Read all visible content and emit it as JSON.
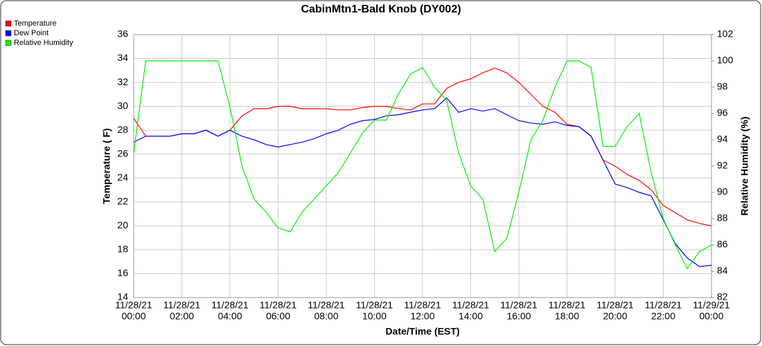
{
  "chart_data": {
    "type": "line",
    "title": "CabinMtn1-Bald Knob (DY002)",
    "x_label": "Date/Time (EST)",
    "y_label": "Temperature ( F)",
    "y2_label": "Relative Humidity (%)",
    "x": [
      0,
      0.5,
      1,
      1.5,
      2,
      2.5,
      3,
      3.5,
      4,
      4.5,
      5,
      5.5,
      6,
      6.5,
      7,
      7.5,
      8,
      8.5,
      9,
      9.5,
      10,
      10.5,
      11,
      11.5,
      12,
      12.5,
      13,
      13.5,
      14,
      14.5,
      15,
      15.5,
      16,
      16.5,
      17,
      17.5,
      18,
      18.5,
      19,
      19.5,
      20,
      20.5,
      21,
      21.5,
      22,
      22.5,
      23,
      23.5,
      24
    ],
    "series": [
      {
        "name": "Temperature",
        "color": "#ff0000",
        "values": [
          29,
          27.5,
          27.5,
          27.5,
          27.7,
          27.7,
          28,
          27.5,
          28,
          29.2,
          29.8,
          29.8,
          30,
          30,
          29.8,
          29.8,
          29.8,
          29.7,
          29.7,
          29.9,
          30,
          30,
          29.8,
          29.7,
          30.2,
          30.2,
          31.5,
          32,
          32.3,
          32.8,
          33.2,
          32.8,
          32,
          31,
          30,
          29.5,
          28.5,
          28.3,
          27.5,
          25.5,
          25,
          24.3,
          23.8,
          23,
          21.7,
          21.1,
          20.5,
          20.2,
          20
        ]
      },
      {
        "name": "Dew Point",
        "color": "#0000ff",
        "values": [
          27,
          27.5,
          27.5,
          27.5,
          27.7,
          27.7,
          28,
          27.5,
          28,
          27.5,
          27.2,
          26.8,
          26.6,
          26.8,
          27,
          27.3,
          27.7,
          28,
          28.5,
          28.8,
          28.9,
          29.2,
          29.3,
          29.5,
          29.7,
          29.8,
          30.7,
          29.5,
          29.8,
          29.6,
          29.8,
          29.3,
          28.8,
          28.6,
          28.5,
          28.7,
          28.4,
          28.3,
          27.5,
          25.5,
          23.5,
          23.2,
          22.8,
          22.5,
          20.5,
          18.5,
          17.3,
          16.6,
          16.7
        ]
      },
      {
        "name": "Relative Humidity",
        "color": "#00ee00",
        "axis": "y2",
        "values": [
          93,
          100,
          100,
          100,
          100,
          100,
          100,
          100,
          96.5,
          92,
          89.5,
          88.5,
          87.3,
          87,
          88.5,
          89.5,
          90.5,
          91.5,
          93,
          94.5,
          95.5,
          95.5,
          97.5,
          99,
          99.5,
          98,
          97,
          93,
          90.5,
          89.5,
          85.5,
          86.5,
          90,
          94,
          95.5,
          98,
          100,
          100,
          99.5,
          93.5,
          93.5,
          95,
          96,
          91.5,
          88,
          86,
          84.2,
          85.5,
          86
        ]
      }
    ],
    "xlim": [
      0,
      24
    ],
    "xticks": [
      {
        "value": 0,
        "label": [
          "11/28/21",
          "00:00"
        ]
      },
      {
        "value": 2,
        "label": [
          "11/28/21",
          "02:00"
        ]
      },
      {
        "value": 4,
        "label": [
          "11/28/21",
          "04:00"
        ]
      },
      {
        "value": 6,
        "label": [
          "11/28/21",
          "06:00"
        ]
      },
      {
        "value": 8,
        "label": [
          "11/28/21",
          "08:00"
        ]
      },
      {
        "value": 10,
        "label": [
          "11/28/21",
          "10:00"
        ]
      },
      {
        "value": 12,
        "label": [
          "11/28/21",
          "12:00"
        ]
      },
      {
        "value": 14,
        "label": [
          "11/28/21",
          "14:00"
        ]
      },
      {
        "value": 16,
        "label": [
          "11/28/21",
          "16:00"
        ]
      },
      {
        "value": 18,
        "label": [
          "11/28/21",
          "18:00"
        ]
      },
      {
        "value": 20,
        "label": [
          "11/28/21",
          "20:00"
        ]
      },
      {
        "value": 22,
        "label": [
          "11/28/21",
          "22:00"
        ]
      },
      {
        "value": 24,
        "label": [
          "11/29/21",
          "00:00"
        ]
      }
    ],
    "ylim": [
      14,
      36
    ],
    "yticks": [
      14,
      16,
      18,
      20,
      22,
      24,
      26,
      28,
      30,
      32,
      34,
      36
    ],
    "y2lim": [
      82,
      102
    ],
    "y2ticks": [
      82,
      84,
      86,
      88,
      90,
      92,
      94,
      96,
      98,
      100,
      102
    ],
    "grid": true,
    "legend": "top-left"
  }
}
